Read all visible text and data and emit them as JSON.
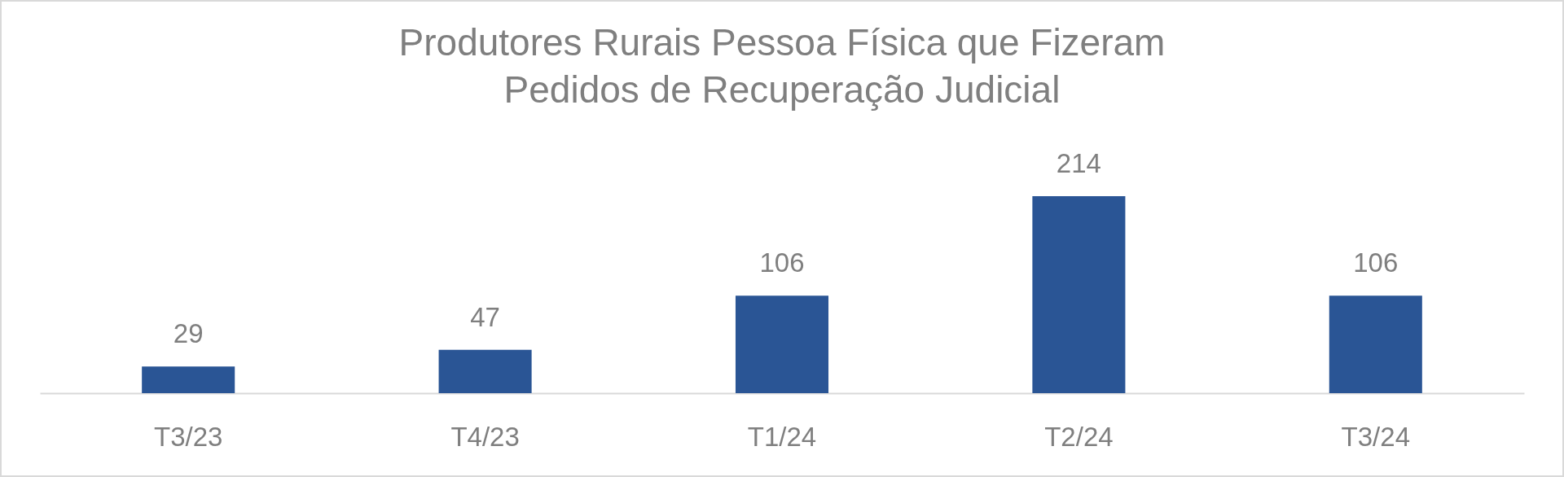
{
  "chart_data": {
    "type": "bar",
    "title": "Produtores Rurais Pessoa Física que Fizeram Pedidos de Recuperação Judicial",
    "categories": [
      "T3/23",
      "T4/23",
      "T1/24",
      "T2/24",
      "T3/24"
    ],
    "values": [
      29,
      47,
      106,
      214,
      106
    ],
    "color": "#2a5595",
    "data_labels": true
  }
}
